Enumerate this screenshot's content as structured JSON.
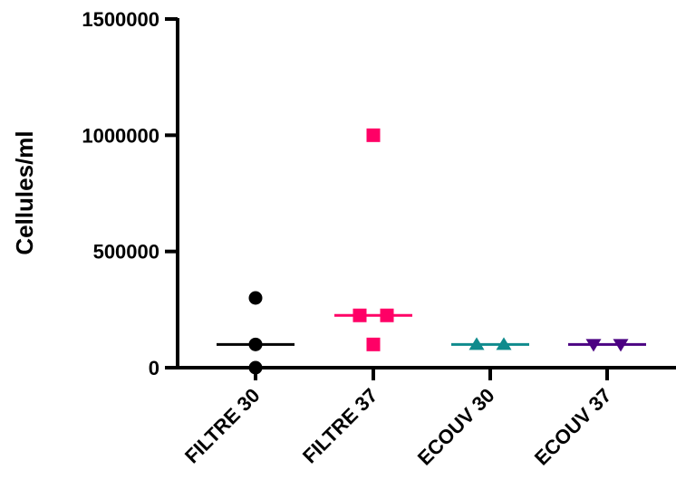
{
  "chart_data": {
    "type": "scatter",
    "title": "",
    "xlabel": "",
    "ylabel": "Cellules/ml",
    "ylim": [
      0,
      1500000
    ],
    "yticks": [
      "0",
      "500000",
      "1000000",
      "1500000"
    ],
    "ytick_values": [
      0,
      500000,
      1000000,
      1500000
    ],
    "grid": false,
    "legend": "none",
    "categories": [
      "FILTRE 30",
      "FILTRE 37",
      "ECOUV 30",
      "ECOUV 37"
    ],
    "series": [
      {
        "category": "FILTRE 30",
        "marker": "circle",
        "color": "#000000",
        "values": [
          300000,
          100000,
          0
        ],
        "median": 100000
      },
      {
        "category": "FILTRE 37",
        "marker": "square",
        "color": "#ff0066",
        "values": [
          1000000,
          225000,
          225000,
          100000
        ],
        "median": 225000
      },
      {
        "category": "ECOUV 30",
        "marker": "triangle-up",
        "color": "#0f8b8d",
        "values": [
          100000,
          100000
        ],
        "median": 100000
      },
      {
        "category": "ECOUV 37",
        "marker": "triangle-down",
        "color": "#4b0082",
        "values": [
          100000,
          100000
        ],
        "median": 100000
      }
    ]
  }
}
